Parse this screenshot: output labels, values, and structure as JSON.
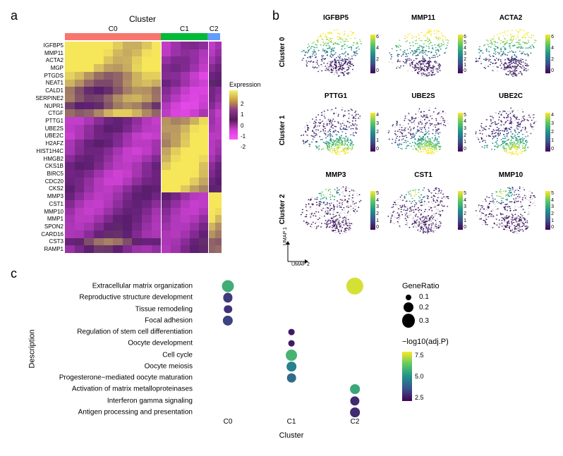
{
  "panel_labels": {
    "a": "a",
    "b": "b",
    "c": "c"
  },
  "heatmap": {
    "title": "Cluster",
    "cluster_bar": [
      {
        "label": "C0",
        "width": 0.62,
        "color": "#f8766d"
      },
      {
        "label": "C1",
        "width": 0.3,
        "color": "#00ba38"
      },
      {
        "label": "C2",
        "width": 0.08,
        "color": "#619cff"
      }
    ],
    "genes": [
      "IGFBP5",
      "MMP11",
      "ACTA2",
      "MGP",
      "PTGDS",
      "NEAT1",
      "CALD1",
      "SERPINE2",
      "NUPR1",
      "CTGF",
      "PTTG1",
      "UBE2S",
      "UBE2C",
      "H2AFZ",
      "HIST1H4C",
      "HMGB2",
      "CKS1B",
      "BIRC5",
      "CDC20",
      "CKS2",
      "MMP3",
      "CST1",
      "MMP10",
      "MMP1",
      "SPON2",
      "CARD16",
      "CST3",
      "RAMP1"
    ],
    "legend_title": "Expression",
    "legend_ticks": [
      "2",
      "1",
      "0",
      "-1",
      "-2"
    ],
    "c0_band": [
      2,
      2,
      2,
      1.8,
      1.2,
      1.0,
      0.6,
      0.9,
      0.5,
      1.2,
      -0.7,
      -0.6,
      -0.8,
      -0.6,
      -0.8,
      -0.7,
      -0.6,
      -0.8,
      -0.8,
      -0.6,
      -0.6,
      -0.7,
      -0.7,
      -0.6,
      -0.5,
      -0.4,
      0.4,
      -0.3
    ],
    "c1_band": [
      -1.0,
      -1.2,
      -1.0,
      -0.9,
      -1.1,
      -0.8,
      -1.0,
      -1.0,
      -1.1,
      -1.0,
      1.6,
      1.8,
      1.7,
      1.5,
      1.7,
      1.6,
      1.6,
      1.8,
      1.8,
      1.6,
      -0.6,
      -0.7,
      -0.7,
      -0.6,
      -0.5,
      -0.5,
      -0.4,
      -0.5
    ],
    "c2_band": [
      -0.8,
      -0.9,
      -0.9,
      -0.8,
      -0.7,
      -0.5,
      -0.9,
      -0.8,
      -0.8,
      -0.9,
      -0.6,
      -0.5,
      -0.6,
      -0.5,
      -0.6,
      -0.6,
      -0.5,
      -0.6,
      -0.6,
      -0.5,
      1.8,
      1.9,
      1.9,
      1.8,
      1.6,
      1.5,
      1.2,
      1.3
    ]
  },
  "umaps": {
    "row_labels": [
      "Cluster 0",
      "Cluster 1",
      "Cluster 2"
    ],
    "axis_labels": {
      "x": "UMAP 2",
      "y": "UMAP 1"
    },
    "panels": [
      [
        {
          "gene": "IGFBP5",
          "max": 6,
          "ticks": [
            "6",
            "4",
            "2",
            "0"
          ],
          "hot": "top"
        },
        {
          "gene": "MMP11",
          "max": 6,
          "ticks": [
            "6",
            "5",
            "4",
            "3",
            "2",
            "1",
            "0"
          ],
          "hot": "top"
        },
        {
          "gene": "ACTA2",
          "max": 6,
          "ticks": [
            "6",
            "4",
            "2",
            "0"
          ],
          "hot": "top"
        }
      ],
      [
        {
          "gene": "PTTG1",
          "max": 4,
          "ticks": [
            "4",
            "3",
            "2",
            "1",
            "0"
          ],
          "hot": "bottom"
        },
        {
          "gene": "UBE2S",
          "max": 5,
          "ticks": [
            "5",
            "4",
            "3",
            "2",
            "1",
            "0"
          ],
          "hot": "bottom"
        },
        {
          "gene": "UBE2C",
          "max": 4,
          "ticks": [
            "4",
            "3",
            "2",
            "1",
            "0"
          ],
          "hot": "bottom"
        }
      ],
      [
        {
          "gene": "MMP3",
          "max": 5,
          "ticks": [
            "5",
            "4",
            "3",
            "2",
            "1",
            "0"
          ],
          "hot": "small"
        },
        {
          "gene": "CST1",
          "max": 5,
          "ticks": [
            "5",
            "4",
            "3",
            "2",
            "1",
            "0"
          ],
          "hot": "small"
        },
        {
          "gene": "MMP10",
          "max": 5,
          "ticks": [
            "5",
            "4",
            "3",
            "2",
            "1",
            "0"
          ],
          "hot": "small"
        }
      ]
    ]
  },
  "dotplot": {
    "xlabel": "Cluster",
    "ylabel": "Description",
    "clusters": [
      "C0",
      "C1",
      "C2"
    ],
    "legend": {
      "ratio_title": "GeneRatio",
      "ratios": [
        {
          "v": "0.1",
          "d": 8
        },
        {
          "v": "0.2",
          "d": 14
        },
        {
          "v": "0.3",
          "d": 20
        }
      ],
      "color_title": "−log10(adj.P)",
      "color_ticks": [
        "7.5",
        "5.0",
        "2.5"
      ]
    },
    "rows": [
      {
        "desc": "Extracellular matrix organization",
        "pts": [
          {
            "c": 0,
            "ratio": 0.2,
            "p": 6.0
          },
          {
            "c": 2,
            "ratio": 0.33,
            "p": 8.5
          }
        ]
      },
      {
        "desc": "Reproductive structure development",
        "pts": [
          {
            "c": 0,
            "ratio": 0.13,
            "p": 2.4
          }
        ]
      },
      {
        "desc": "Tissue remodeling",
        "pts": [
          {
            "c": 0,
            "ratio": 0.1,
            "p": 2.2
          }
        ]
      },
      {
        "desc": "Focal adhesion",
        "pts": [
          {
            "c": 0,
            "ratio": 0.15,
            "p": 2.6
          }
        ]
      },
      {
        "desc": "Regulation of stem cell differentiation",
        "pts": [
          {
            "c": 1,
            "ratio": 0.05,
            "p": 1.6
          }
        ]
      },
      {
        "desc": "Oocyte development",
        "pts": [
          {
            "c": 1,
            "ratio": 0.05,
            "p": 1.6
          }
        ]
      },
      {
        "desc": "Cell cycle",
        "pts": [
          {
            "c": 1,
            "ratio": 0.18,
            "p": 6.2
          }
        ]
      },
      {
        "desc": "Oocyte meiosis",
        "pts": [
          {
            "c": 1,
            "ratio": 0.14,
            "p": 4.5
          }
        ]
      },
      {
        "desc": "Progesterone−mediated oocyte maturation",
        "pts": [
          {
            "c": 1,
            "ratio": 0.12,
            "p": 3.8
          }
        ]
      },
      {
        "desc": "Activation of matrix metalloproteinases",
        "pts": [
          {
            "c": 2,
            "ratio": 0.14,
            "p": 5.8
          }
        ]
      },
      {
        "desc": "Interferon gamma signaling",
        "pts": [
          {
            "c": 2,
            "ratio": 0.13,
            "p": 2.0
          }
        ]
      },
      {
        "desc": "Antigen processing and presentation",
        "pts": [
          {
            "c": 2,
            "ratio": 0.14,
            "p": 2.0
          }
        ]
      }
    ]
  }
}
